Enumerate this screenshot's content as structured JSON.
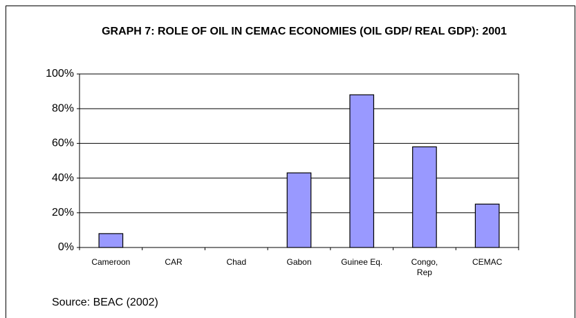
{
  "chart_data": {
    "type": "bar",
    "title": "GRAPH 7: ROLE OF OIL IN CEMAC ECONOMIES (OIL GDP/ REAL GDP): 2001",
    "categories": [
      "Cameroon",
      "CAR",
      "Chad",
      "Gabon",
      "Guinee Eq.",
      "Congo, Rep",
      "CEMAC"
    ],
    "values": [
      8,
      0,
      0,
      43,
      88,
      58,
      25
    ],
    "color": "#9999ff",
    "ylim": [
      0,
      100
    ],
    "yticks": [
      {
        "value": 0,
        "label": "0%"
      },
      {
        "value": 20,
        "label": "20%"
      },
      {
        "value": 40,
        "label": "40%"
      },
      {
        "value": 60,
        "label": "60%"
      },
      {
        "value": 80,
        "label": "80%"
      },
      {
        "value": 100,
        "label": "100%"
      }
    ],
    "grid": true,
    "source": "Source: BEAC (2002)"
  }
}
